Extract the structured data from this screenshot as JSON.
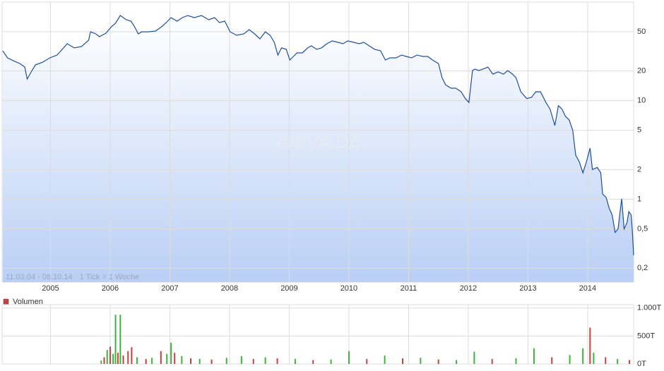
{
  "chart_data": [
    {
      "type": "line",
      "log_scale": true,
      "grid": true,
      "watermark": "ARIVA.DE",
      "annotations": [
        "11.03.04 - 08.10.14",
        "1 Tick = 1 Woche"
      ],
      "xlim": [
        2004.19,
        2014.77
      ],
      "xticks": [
        2005,
        2006,
        2007,
        2008,
        2009,
        2010,
        2011,
        2012,
        2013,
        2014
      ],
      "ylim": [
        0.144,
        100
      ],
      "yticks": [
        {
          "value": 0.2,
          "label": "0,2"
        },
        {
          "value": 0.5,
          "label": "0,5"
        },
        1,
        2,
        5,
        10,
        20,
        50
      ],
      "x": [
        2004.2,
        2004.28,
        2004.4,
        2004.49,
        2004.57,
        2004.61,
        2004.69,
        2004.75,
        2004.87,
        2004.99,
        2005.11,
        2005.22,
        2005.28,
        2005.4,
        2005.52,
        2005.64,
        2005.67,
        2005.76,
        2005.82,
        2005.93,
        2006.02,
        2006.09,
        2006.17,
        2006.27,
        2006.35,
        2006.41,
        2006.47,
        2006.53,
        2006.64,
        2006.76,
        2006.86,
        2006.94,
        2007.02,
        2007.12,
        2007.21,
        2007.3,
        2007.41,
        2007.53,
        2007.65,
        2007.75,
        2007.83,
        2007.92,
        2008.01,
        2008.12,
        2008.24,
        2008.33,
        2008.42,
        2008.51,
        2008.6,
        2008.68,
        2008.75,
        2008.81,
        2008.87,
        2008.95,
        2009.01,
        2009.07,
        2009.13,
        2009.22,
        2009.31,
        2009.37,
        2009.46,
        2009.54,
        2009.63,
        2009.72,
        2009.82,
        2009.9,
        2009.98,
        2010.08,
        2010.17,
        2010.25,
        2010.34,
        2010.43,
        2010.53,
        2010.61,
        2010.69,
        2010.79,
        2010.88,
        2010.96,
        2011.05,
        2011.14,
        2011.24,
        2011.32,
        2011.4,
        2011.5,
        2011.56,
        2011.62,
        2011.71,
        2011.79,
        2011.88,
        2011.95,
        2012.01,
        2012.07,
        2012.11,
        2012.18,
        2012.27,
        2012.33,
        2012.41,
        2012.5,
        2012.59,
        2012.66,
        2012.74,
        2012.8,
        2012.88,
        2012.98,
        2013.06,
        2013.13,
        2013.21,
        2013.3,
        2013.37,
        2013.45,
        2013.51,
        2013.57,
        2013.63,
        2013.69,
        2013.75,
        2013.8,
        2013.86,
        2013.92,
        2013.98,
        2014.04,
        2014.08,
        2014.16,
        2014.22,
        2014.25,
        2014.31,
        2014.36,
        2014.41,
        2014.46,
        2014.51,
        2014.55,
        2014.57,
        2014.61,
        2014.66,
        2014.69,
        2014.73,
        2014.75,
        2014.77
      ],
      "series": [
        {
          "color": "#1f4e9c",
          "values": [
            32.1,
            27.2,
            25.1,
            23.8,
            21.9,
            16.6,
            20.2,
            23.1,
            24.6,
            27.2,
            29.0,
            34.3,
            37.8,
            34.3,
            35.4,
            41.1,
            50.0,
            47.6,
            44.6,
            48.4,
            56.2,
            61.0,
            73.1,
            66.2,
            64.1,
            56.2,
            47.6,
            50.0,
            50.0,
            50.9,
            56.2,
            62.0,
            69.6,
            64.1,
            69.6,
            73.1,
            69.6,
            73.1,
            66.2,
            69.6,
            62.0,
            64.1,
            50.0,
            46.1,
            47.6,
            52.6,
            47.6,
            42.4,
            50.0,
            46.1,
            39.1,
            29.0,
            34.3,
            33.2,
            25.9,
            28.1,
            30.5,
            30.5,
            34.3,
            36.0,
            33.2,
            34.3,
            37.8,
            40.4,
            39.1,
            37.8,
            40.4,
            39.1,
            37.8,
            39.1,
            36.0,
            33.2,
            32.1,
            25.9,
            27.2,
            27.2,
            29.0,
            28.1,
            27.2,
            29.0,
            28.1,
            28.1,
            25.9,
            23.8,
            17.1,
            14.5,
            13.4,
            13.4,
            12.3,
            10.5,
            9.6,
            20.2,
            20.9,
            20.2,
            21.2,
            21.9,
            18.6,
            19.6,
            18.6,
            20.2,
            18.6,
            17.1,
            12.3,
            10.5,
            10.8,
            12.3,
            12.3,
            9.6,
            8.2,
            5.6,
            8.9,
            8.2,
            6.9,
            6.4,
            5.0,
            2.8,
            2.4,
            1.85,
            2.4,
            3.3,
            2.0,
            2.1,
            1.85,
            1.13,
            1.04,
            0.81,
            0.69,
            0.46,
            0.5,
            0.81,
            1.01,
            0.5,
            0.58,
            0.75,
            0.69,
            0.46,
            0.27
          ]
        }
      ]
    },
    {
      "type": "bar",
      "grid": true,
      "legend": "top-left",
      "xlim": [
        2004.19,
        2014.77
      ],
      "xticks": [
        2005,
        2006,
        2007,
        2008,
        2009,
        2010,
        2011,
        2012,
        2013,
        2014
      ],
      "ylim": [
        0,
        1060
      ],
      "yticks": [
        {
          "value": 0,
          "label": "0T"
        },
        {
          "value": 500,
          "label": "500T"
        },
        {
          "value": 1000,
          "label": "1.000T"
        }
      ],
      "x": [
        2005.85,
        2005.9,
        2005.95,
        2006.0,
        2006.05,
        2006.09,
        2006.13,
        2006.17,
        2006.22,
        2006.3,
        2006.36,
        2006.45,
        2006.6,
        2006.7,
        2006.85,
        2006.95,
        2007.02,
        2007.08,
        2007.2,
        2007.35,
        2007.5,
        2007.7,
        2007.95,
        2008.2,
        2008.4,
        2008.6,
        2008.8,
        2009.1,
        2009.4,
        2009.7,
        2010.0,
        2010.3,
        2010.6,
        2010.9,
        2011.2,
        2011.5,
        2011.8,
        2012.1,
        2012.4,
        2012.8,
        2013.1,
        2013.4,
        2013.7,
        2013.92,
        2014.04,
        2014.1,
        2014.3,
        2014.5,
        2014.7
      ],
      "series": [
        {
          "name": "Volumen",
          "color": "#c8413c",
          "values": [
            60,
            120,
            250,
            310,
            180,
            880,
            200,
            880,
            150,
            230,
            300,
            120,
            90,
            110,
            230,
            180,
            380,
            200,
            140,
            100,
            90,
            80,
            110,
            140,
            90,
            120,
            100,
            90,
            70,
            80,
            230,
            90,
            150,
            100,
            110,
            80,
            70,
            220,
            90,
            100,
            280,
            120,
            160,
            280,
            650,
            200,
            120,
            90,
            70
          ],
          "bar_colors": [
            "#3cb43c",
            "#c8413c",
            "#3cb43c",
            "#c8413c",
            "#3cb43c",
            "#3cb43c",
            "#c8413c",
            "#3cb43c",
            "#c8413c",
            "#c8413c",
            "#c8413c",
            "#3cb43c",
            "#c8413c",
            "#3cb43c",
            "#c8413c",
            "#3cb43c",
            "#3cb43c",
            "#c8413c",
            "#3cb43c",
            "#c8413c",
            "#3cb43c",
            "#c8413c",
            "#3cb43c",
            "#3cb43c",
            "#c8413c",
            "#3cb43c",
            "#c8413c",
            "#3cb43c",
            "#c8413c",
            "#3cb43c",
            "#3cb43c",
            "#c8413c",
            "#3cb43c",
            "#c8413c",
            "#3cb43c",
            "#c8413c",
            "#3cb43c",
            "#3cb43c",
            "#c8413c",
            "#3cb43c",
            "#3cb43c",
            "#c8413c",
            "#3cb43c",
            "#3cb43c",
            "#c8413c",
            "#3cb43c",
            "#c8413c",
            "#3cb43c",
            "#c8413c"
          ]
        }
      ]
    }
  ]
}
